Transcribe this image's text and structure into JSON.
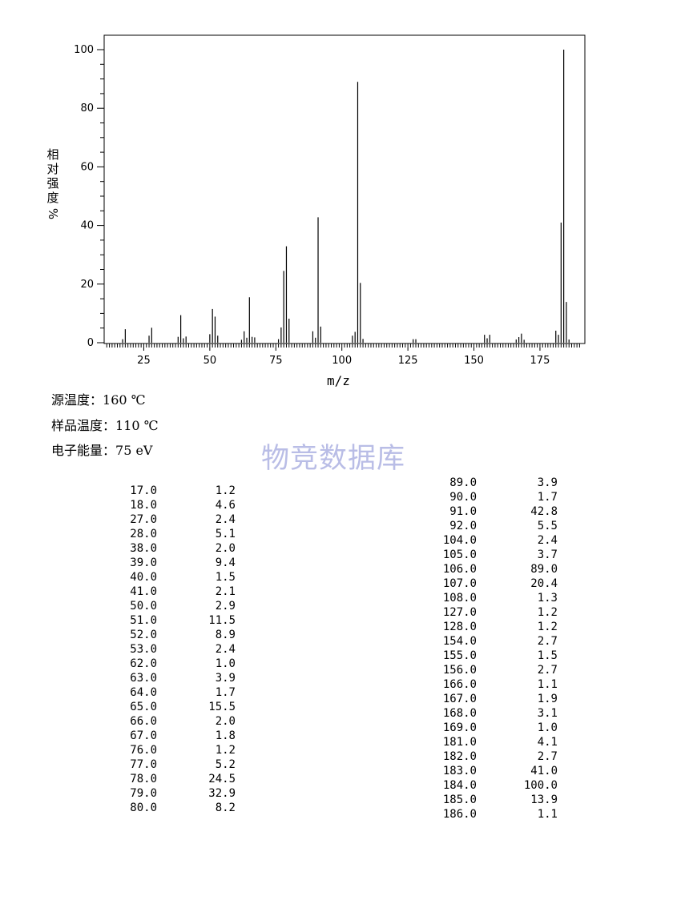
{
  "chart_data": {
    "type": "bar",
    "xlabel": "m/z",
    "ylabel_chars": [
      "相",
      "对",
      "强",
      "度"
    ],
    "ylabel_unit": "%",
    "xlim": [
      10,
      192
    ],
    "ylim": [
      0,
      105
    ],
    "xticks": [
      25,
      50,
      75,
      100,
      125,
      150,
      175
    ],
    "yticks": [
      0,
      20,
      40,
      60,
      80,
      100
    ],
    "grid": false,
    "series": [
      {
        "mz": [
          17,
          18,
          27,
          28,
          38,
          39,
          40,
          41,
          50,
          51,
          52,
          53,
          62,
          63,
          64,
          65,
          66,
          67,
          76,
          77,
          78,
          79,
          80,
          89,
          90,
          91,
          92,
          104,
          105,
          106,
          107,
          108,
          127,
          128,
          154,
          155,
          156,
          166,
          167,
          168,
          169,
          181,
          182,
          183,
          184,
          185,
          186
        ],
        "intensity": [
          1.2,
          4.6,
          2.4,
          5.1,
          2.0,
          9.4,
          1.5,
          2.1,
          2.9,
          11.5,
          8.9,
          2.4,
          1.0,
          3.9,
          1.7,
          15.5,
          2.0,
          1.8,
          1.2,
          5.2,
          24.5,
          32.9,
          8.2,
          3.9,
          1.7,
          42.8,
          5.5,
          2.4,
          3.7,
          89.0,
          20.4,
          1.3,
          1.2,
          1.2,
          2.7,
          1.5,
          2.7,
          1.1,
          1.9,
          3.1,
          1.0,
          4.1,
          2.7,
          41.0,
          100.0,
          13.9,
          1.1
        ]
      }
    ]
  },
  "conditions": [
    {
      "label": "源温度：",
      "value": "160 ℃"
    },
    {
      "label": "样品温度：",
      "value": "110 ℃"
    },
    {
      "label": "电子能量：",
      "value": "75 eV"
    }
  ],
  "watermark": "物竞数据库",
  "peak_table_left": [
    [
      "17.0",
      "1.2"
    ],
    [
      "18.0",
      "4.6"
    ],
    [
      "27.0",
      "2.4"
    ],
    [
      "28.0",
      "5.1"
    ],
    [
      "38.0",
      "2.0"
    ],
    [
      "39.0",
      "9.4"
    ],
    [
      "40.0",
      "1.5"
    ],
    [
      "41.0",
      "2.1"
    ],
    [
      "50.0",
      "2.9"
    ],
    [
      "51.0",
      "11.5"
    ],
    [
      "52.0",
      "8.9"
    ],
    [
      "53.0",
      "2.4"
    ],
    [
      "62.0",
      "1.0"
    ],
    [
      "63.0",
      "3.9"
    ],
    [
      "64.0",
      "1.7"
    ],
    [
      "65.0",
      "15.5"
    ],
    [
      "66.0",
      "2.0"
    ],
    [
      "67.0",
      "1.8"
    ],
    [
      "76.0",
      "1.2"
    ],
    [
      "77.0",
      "5.2"
    ],
    [
      "78.0",
      "24.5"
    ],
    [
      "79.0",
      "32.9"
    ],
    [
      "80.0",
      "8.2"
    ]
  ],
  "peak_table_right": [
    [
      "89.0",
      "3.9"
    ],
    [
      "90.0",
      "1.7"
    ],
    [
      "91.0",
      "42.8"
    ],
    [
      "92.0",
      "5.5"
    ],
    [
      "104.0",
      "2.4"
    ],
    [
      "105.0",
      "3.7"
    ],
    [
      "106.0",
      "89.0"
    ],
    [
      "107.0",
      "20.4"
    ],
    [
      "108.0",
      "1.3"
    ],
    [
      "127.0",
      "1.2"
    ],
    [
      "128.0",
      "1.2"
    ],
    [
      "154.0",
      "2.7"
    ],
    [
      "155.0",
      "1.5"
    ],
    [
      "156.0",
      "2.7"
    ],
    [
      "166.0",
      "1.1"
    ],
    [
      "167.0",
      "1.9"
    ],
    [
      "168.0",
      "3.1"
    ],
    [
      "169.0",
      "1.0"
    ],
    [
      "181.0",
      "4.1"
    ],
    [
      "182.0",
      "2.7"
    ],
    [
      "183.0",
      "41.0"
    ],
    [
      "184.0",
      "100.0"
    ],
    [
      "185.0",
      "13.9"
    ],
    [
      "186.0",
      "1.1"
    ]
  ]
}
